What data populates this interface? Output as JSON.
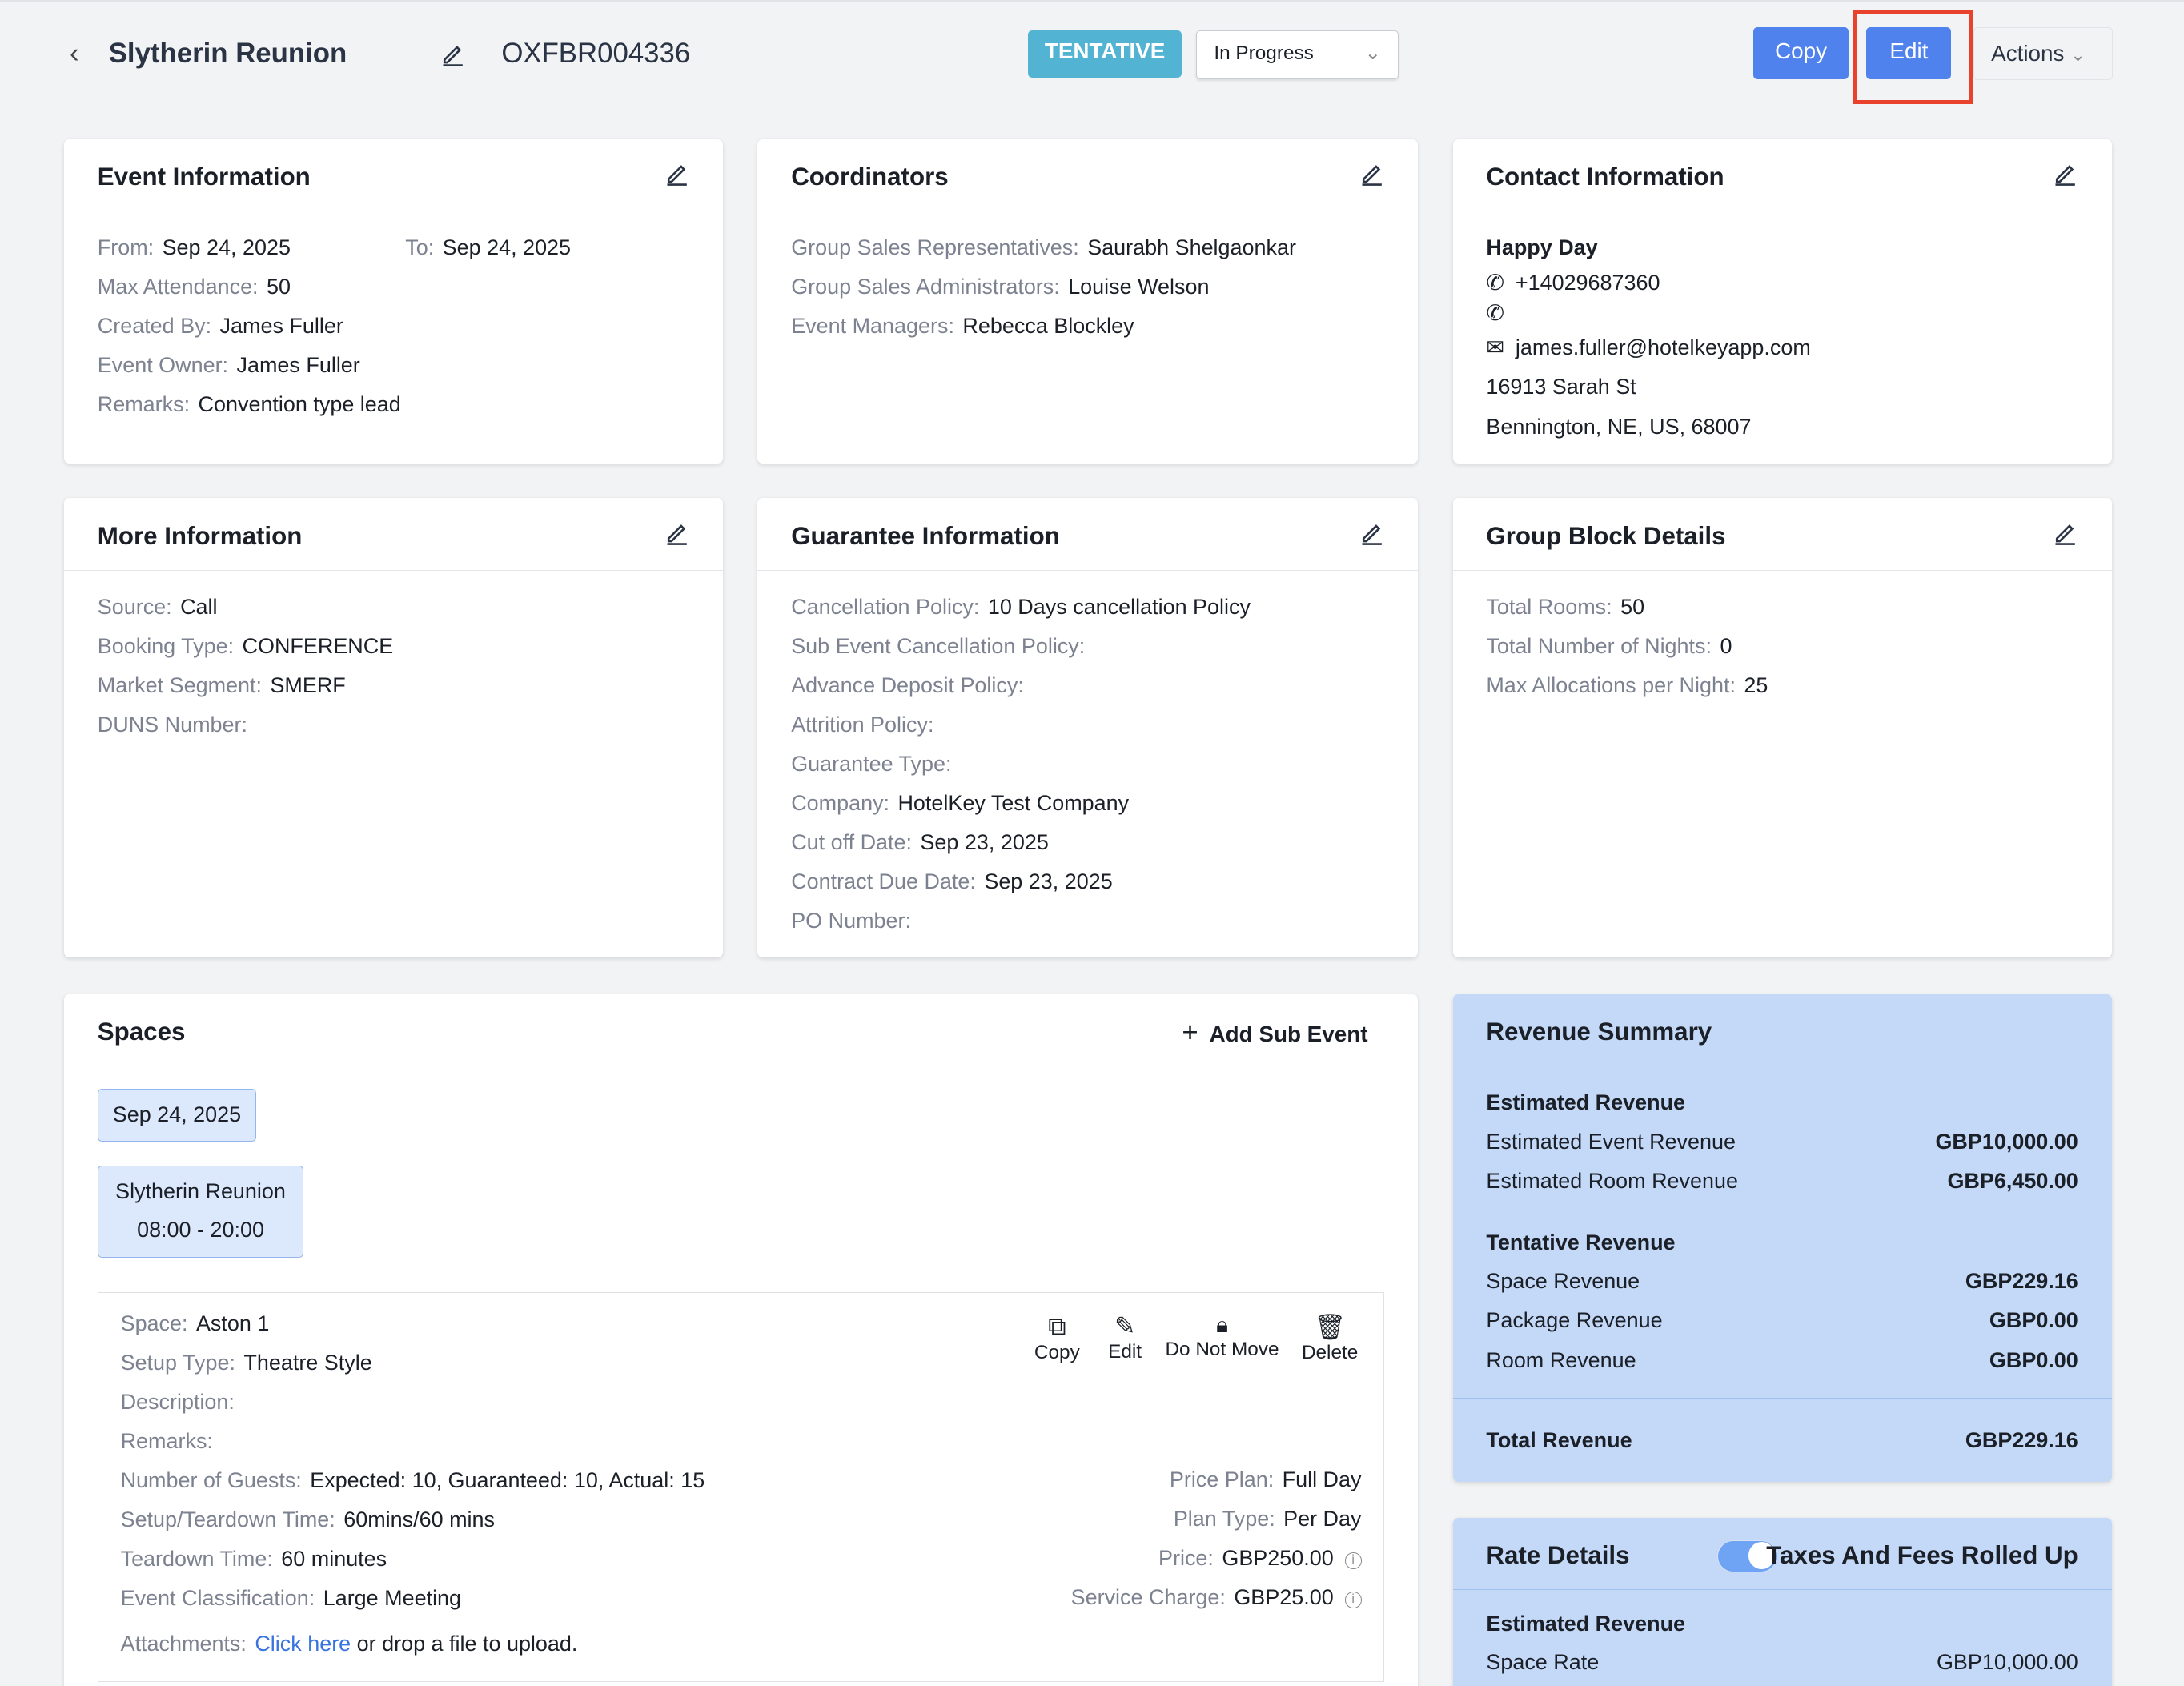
{
  "header": {
    "back_icon": "chevron-left-icon",
    "title": "Slytherin Reunion",
    "edit_icon": "pencil-icon",
    "code": "OXFBR004336",
    "status_badge": "TENTATIVE",
    "status_select": "In Progress",
    "copy": "Copy",
    "edit": "Edit",
    "actions": "Actions"
  },
  "event_info": {
    "title": "Event Information",
    "from_label": "From:",
    "from": "Sep 24, 2025",
    "to_label": "To:",
    "to": "Sep 24, 2025",
    "rows": [
      [
        "Max Attendance:",
        "50"
      ],
      [
        "Created By:",
        "James Fuller"
      ],
      [
        "Event Owner:",
        "James Fuller"
      ],
      [
        "Remarks:",
        "Convention type lead"
      ]
    ]
  },
  "coordinators": {
    "title": "Coordinators",
    "rows": [
      [
        "Group Sales Representatives:",
        "Saurabh Shelgaonkar"
      ],
      [
        "Group Sales Administrators:",
        "Louise Welson"
      ],
      [
        "Event Managers:",
        "Rebecca Blockley"
      ]
    ]
  },
  "contact": {
    "title": "Contact Information",
    "name": "Happy Day",
    "phone": "+14029687360",
    "phone2": "",
    "email": "james.fuller@hotelkeyapp.com",
    "address1": "16913 Sarah St",
    "address2": "Bennington, NE, US, 68007"
  },
  "more_info": {
    "title": "More Information",
    "rows": [
      [
        "Source:",
        "Call"
      ],
      [
        "Booking Type:",
        "CONFERENCE"
      ],
      [
        "Market Segment:",
        "SMERF"
      ],
      [
        "DUNS Number:",
        ""
      ]
    ]
  },
  "guarantee": {
    "title": "Guarantee Information",
    "rows": [
      [
        "Cancellation Policy:",
        "10 Days cancellation Policy"
      ],
      [
        "Sub Event Cancellation Policy:",
        ""
      ],
      [
        "Advance Deposit Policy:",
        ""
      ],
      [
        "Attrition Policy:",
        ""
      ],
      [
        "Guarantee Type:",
        ""
      ],
      [
        "Company:",
        "HotelKey Test Company"
      ],
      [
        "Cut off Date:",
        "Sep 23, 2025"
      ],
      [
        "Contract Due Date:",
        "Sep 23, 2025"
      ],
      [
        "PO Number:",
        ""
      ]
    ]
  },
  "group_block": {
    "title": "Group Block Details",
    "rows": [
      [
        "Total Rooms:",
        "50"
      ],
      [
        "Total Number of Nights:",
        "0"
      ],
      [
        "Max Allocations per Night:",
        "25"
      ]
    ]
  },
  "spaces": {
    "title": "Spaces",
    "add_sub_event": "Add Sub Event",
    "date_chip": "Sep 24, 2025",
    "event_name": "Slytherin Reunion",
    "event_time": "08:00 - 20:00",
    "tools": [
      "Copy",
      "Edit",
      "Do Not Move",
      "Delete"
    ],
    "left_rows": [
      [
        "Space:",
        "Aston 1"
      ],
      [
        "Setup Type:",
        "Theatre Style"
      ],
      [
        "Description:",
        ""
      ],
      [
        "Remarks:",
        ""
      ],
      [
        "Number of Guests:",
        "Expected: 10, Guaranteed: 10, Actual: 15"
      ],
      [
        "Setup/Teardown Time:",
        "60mins/60 mins"
      ],
      [
        "Teardown Time:",
        "60 minutes"
      ],
      [
        "Event Classification:",
        "Large Meeting"
      ]
    ],
    "right_rows": [
      [
        "Price Plan:",
        "Full Day"
      ],
      [
        "Plan Type:",
        "Per Day"
      ],
      [
        "Price:",
        "GBP250.00"
      ],
      [
        "Service Charge:",
        "GBP25.00"
      ]
    ],
    "attachments_label": "Attachments:",
    "attachments_link": "Click here",
    "attachments_text": "or drop a file to upload."
  },
  "revenue": {
    "title": "Revenue Summary",
    "sections": [
      {
        "title": "Estimated Revenue",
        "rows": [
          [
            "Estimated Event Revenue",
            "GBP10,000.00"
          ],
          [
            "Estimated Room Revenue",
            "GBP6,450.00"
          ]
        ]
      },
      {
        "title": "Tentative Revenue",
        "rows": [
          [
            "Space Revenue",
            "GBP229.16"
          ],
          [
            "Package Revenue",
            "GBP0.00"
          ],
          [
            "Room Revenue",
            "GBP0.00"
          ]
        ]
      }
    ],
    "total_label": "Total Revenue",
    "total": "GBP229.16"
  },
  "rate": {
    "title": "Rate Details",
    "toggle_label": "Taxes And Fees Rolled Up",
    "toggle_on": true,
    "section": "Estimated Revenue",
    "rows": [
      [
        "Space Rate",
        "GBP10,000.00"
      ]
    ]
  },
  "colors": {
    "primary": "#4f82ec",
    "badge": "#52b3d3",
    "highlight": "#e8412c",
    "summary_bg": "#c4d9f7"
  }
}
